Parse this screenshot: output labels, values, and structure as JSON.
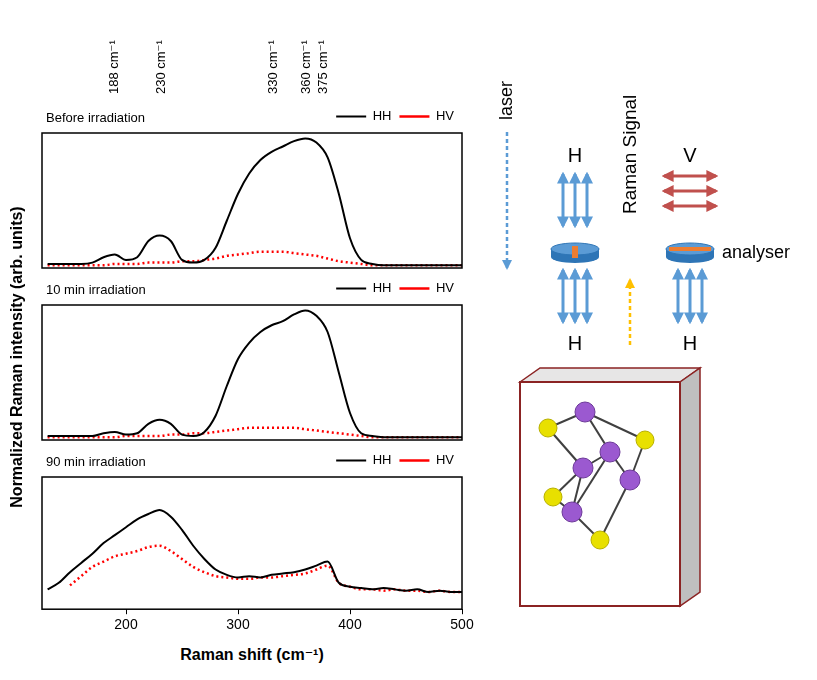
{
  "figure": {
    "y_label": "Normalized Raman intensity (arb. units)",
    "x_label": "Raman shift (cm⁻¹)",
    "peak_labels": [
      {
        "value": 188,
        "label": "188 cm⁻¹"
      },
      {
        "value": 230,
        "label": "230 cm⁻¹"
      },
      {
        "value": 330,
        "label": "330 cm⁻¹"
      },
      {
        "value": 360,
        "label": "360 cm⁻¹"
      },
      {
        "value": 375,
        "label": "375 cm⁻¹"
      }
    ]
  },
  "chart_data": [
    {
      "type": "line",
      "title": "Before irradiation",
      "x": [
        130,
        140,
        150,
        160,
        170,
        180,
        190,
        200,
        210,
        220,
        230,
        240,
        250,
        260,
        270,
        280,
        290,
        300,
        310,
        320,
        330,
        340,
        350,
        360,
        370,
        380,
        390,
        400,
        410,
        420,
        430,
        440,
        450,
        460,
        470,
        480,
        490,
        500
      ],
      "series": [
        {
          "name": "HH",
          "color": "#000000",
          "line_style": "solid",
          "values": [
            0.03,
            0.03,
            0.03,
            0.03,
            0.04,
            0.08,
            0.1,
            0.06,
            0.08,
            0.2,
            0.24,
            0.2,
            0.06,
            0.04,
            0.06,
            0.15,
            0.35,
            0.55,
            0.7,
            0.8,
            0.86,
            0.9,
            0.94,
            0.96,
            0.93,
            0.82,
            0.55,
            0.22,
            0.06,
            0.03,
            0.02,
            0.02,
            0.02,
            0.02,
            0.02,
            0.02,
            0.02,
            0.02
          ]
        },
        {
          "name": "HV",
          "color": "#ff0000",
          "line_style": "dotted",
          "values": [
            0.02,
            0.02,
            0.02,
            0.02,
            0.02,
            0.02,
            0.03,
            0.03,
            0.03,
            0.04,
            0.04,
            0.04,
            0.05,
            0.05,
            0.06,
            0.07,
            0.09,
            0.1,
            0.11,
            0.12,
            0.12,
            0.12,
            0.11,
            0.1,
            0.09,
            0.07,
            0.05,
            0.04,
            0.03,
            0.02,
            0.02,
            0.02,
            0.02,
            0.02,
            0.02,
            0.02,
            0.02,
            0.02
          ]
        }
      ],
      "xlim": [
        125,
        500
      ],
      "ylim": [
        0,
        1
      ],
      "grid": false,
      "legend": "top right",
      "tick_labels": false
    },
    {
      "type": "line",
      "title": "10 min irradiation",
      "x": [
        130,
        140,
        150,
        160,
        170,
        180,
        190,
        200,
        210,
        220,
        230,
        240,
        250,
        260,
        270,
        280,
        290,
        300,
        310,
        320,
        330,
        340,
        350,
        360,
        370,
        380,
        390,
        400,
        410,
        420,
        430,
        440,
        450,
        460,
        470,
        480,
        490,
        500
      ],
      "series": [
        {
          "name": "HH",
          "color": "#000000",
          "line_style": "solid",
          "values": [
            0.03,
            0.03,
            0.03,
            0.03,
            0.03,
            0.05,
            0.06,
            0.04,
            0.05,
            0.12,
            0.15,
            0.12,
            0.04,
            0.03,
            0.06,
            0.18,
            0.4,
            0.6,
            0.72,
            0.8,
            0.85,
            0.88,
            0.93,
            0.96,
            0.92,
            0.8,
            0.5,
            0.2,
            0.05,
            0.03,
            0.02,
            0.02,
            0.02,
            0.02,
            0.02,
            0.02,
            0.02,
            0.02
          ]
        },
        {
          "name": "HV",
          "color": "#ff0000",
          "line_style": "dotted",
          "values": [
            0.02,
            0.02,
            0.02,
            0.02,
            0.02,
            0.02,
            0.02,
            0.03,
            0.03,
            0.03,
            0.03,
            0.04,
            0.04,
            0.05,
            0.05,
            0.06,
            0.07,
            0.08,
            0.09,
            0.09,
            0.09,
            0.09,
            0.09,
            0.08,
            0.07,
            0.06,
            0.05,
            0.04,
            0.03,
            0.02,
            0.02,
            0.02,
            0.02,
            0.02,
            0.02,
            0.02,
            0.02,
            0.02
          ]
        }
      ],
      "xlim": [
        125,
        500
      ],
      "ylim": [
        0,
        1
      ],
      "grid": false,
      "legend": "top right",
      "tick_labels": false
    },
    {
      "type": "line",
      "title": "90 min irradiation",
      "x": [
        130,
        140,
        150,
        160,
        170,
        180,
        190,
        200,
        210,
        220,
        230,
        240,
        250,
        260,
        270,
        280,
        290,
        300,
        310,
        320,
        330,
        340,
        350,
        360,
        370,
        380,
        390,
        400,
        410,
        420,
        430,
        440,
        450,
        460,
        470,
        480,
        490,
        500
      ],
      "series": [
        {
          "name": "HH",
          "color": "#000000",
          "line_style": "solid",
          "values": [
            0.15,
            0.2,
            0.28,
            0.35,
            0.42,
            0.5,
            0.56,
            0.62,
            0.68,
            0.72,
            0.75,
            0.7,
            0.6,
            0.48,
            0.38,
            0.3,
            0.26,
            0.24,
            0.25,
            0.24,
            0.26,
            0.27,
            0.28,
            0.3,
            0.33,
            0.36,
            0.2,
            0.17,
            0.16,
            0.15,
            0.16,
            0.15,
            0.14,
            0.15,
            0.13,
            0.14,
            0.13,
            0.13
          ]
        },
        {
          "name": "HV",
          "color": "#ff0000",
          "line_style": "dotted",
          "values": [
            null,
            null,
            0.18,
            0.25,
            0.32,
            0.36,
            0.4,
            0.42,
            0.44,
            0.47,
            0.48,
            0.44,
            0.38,
            0.32,
            0.28,
            0.25,
            0.24,
            0.23,
            0.23,
            0.24,
            0.24,
            0.25,
            0.26,
            0.27,
            0.3,
            0.33,
            0.2,
            0.17,
            0.15,
            0.15,
            0.14,
            0.15,
            0.14,
            0.14,
            0.13,
            0.14,
            0.13,
            0.13
          ]
        }
      ],
      "xlim": [
        125,
        500
      ],
      "xticks": [
        200,
        300,
        400,
        500
      ],
      "ylim": [
        0,
        1
      ],
      "grid": false,
      "legend": "top right",
      "tick_labels": "x"
    }
  ],
  "diagram": {
    "laser": "laser",
    "polarizer_axis_top": "H",
    "polarizer_axis_bottom": "H",
    "raman_signal": "Raman Signal",
    "analyser_axis_top": "V",
    "analyser_axis_bottom": "H",
    "analyser": "analyser"
  }
}
